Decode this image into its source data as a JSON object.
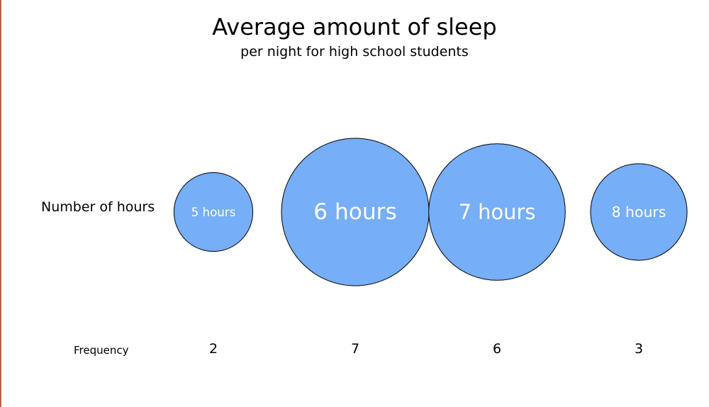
{
  "chart_data": {
    "type": "bubble",
    "title": "Average amount of sleep",
    "subtitle": "per night for high school students",
    "row_labels": {
      "hours": "Number of hours",
      "frequency": "Frequency"
    },
    "categories": [
      "5 hours",
      "6 hours",
      "7 hours",
      "8 hours"
    ],
    "hours": [
      5,
      6,
      7,
      8
    ],
    "values": [
      2,
      7,
      6,
      3
    ],
    "value_labels": [
      "2",
      "7",
      "6",
      "3"
    ],
    "bubble_color": "#76aef7",
    "bubble_stroke": "#000000",
    "label_color": "#ffffff"
  }
}
